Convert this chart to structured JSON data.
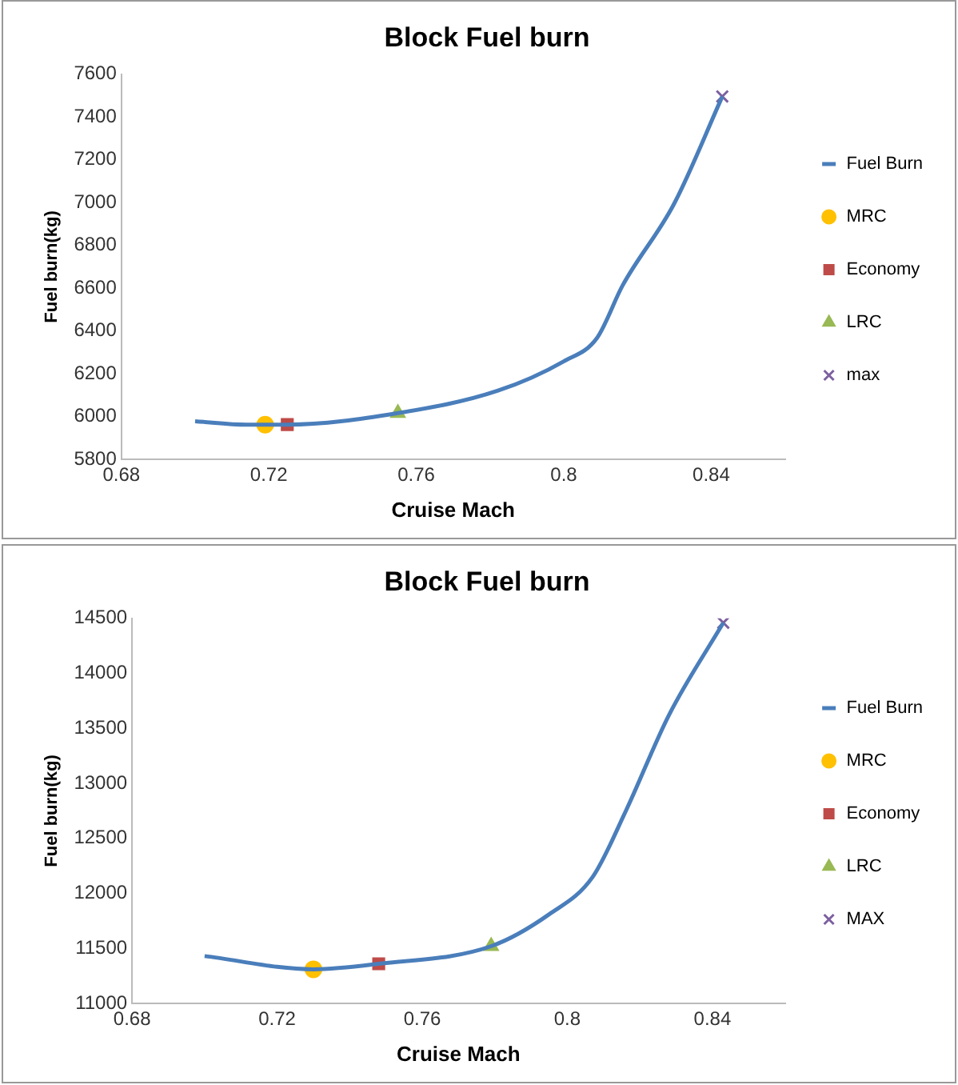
{
  "chart_data": [
    {
      "type": "line",
      "title": "Block Fuel burn",
      "xlabel": "Cruise Mach",
      "ylabel": "Fuel burn(kg)",
      "xlim": [
        0.68,
        0.86
      ],
      "xticks": [
        0.68,
        0.72,
        0.76,
        0.8,
        0.84
      ],
      "ylim": [
        5800,
        7600
      ],
      "yticks": [
        5800,
        6000,
        6200,
        6400,
        6600,
        6800,
        7000,
        7200,
        7400,
        7600
      ],
      "grid": false,
      "legend": "right",
      "series": [
        {
          "name": "Fuel Burn",
          "type": "line",
          "color": "#4a7ebb",
          "marker": "none",
          "x": [
            0.7,
            0.714,
            0.725,
            0.755,
            0.782,
            0.8,
            0.809,
            0.816,
            0.83,
            0.843
          ],
          "values": [
            5978,
            5962,
            5962,
            6016,
            6120,
            6258,
            6367,
            6614,
            6997,
            7496
          ]
        },
        {
          "name": "MRC",
          "type": "scatter",
          "color": "#ffc000",
          "marker": "circle",
          "x": [
            0.719
          ],
          "values": [
            5962
          ]
        },
        {
          "name": "Economy",
          "type": "scatter",
          "color": "#be4b48",
          "marker": "square",
          "x": [
            0.725
          ],
          "values": [
            5962
          ]
        },
        {
          "name": "LRC",
          "type": "scatter",
          "color": "#98b954",
          "marker": "triangle",
          "x": [
            0.755
          ],
          "values": [
            6016
          ]
        },
        {
          "name": "max",
          "type": "scatter",
          "color": "#7d60a0",
          "marker": "cross",
          "x": [
            0.843
          ],
          "values": [
            7496
          ]
        }
      ]
    },
    {
      "type": "line",
      "title": "Block Fuel burn",
      "xlabel": "Cruise Mach",
      "ylabel": "Fuel burn(kg)",
      "xlim": [
        0.68,
        0.86
      ],
      "xticks": [
        0.68,
        0.72,
        0.76,
        0.8,
        0.84
      ],
      "ylim": [
        11000,
        14500
      ],
      "yticks": [
        11000,
        11500,
        12000,
        12500,
        13000,
        13500,
        14000,
        14500
      ],
      "grid": false,
      "legend": "right",
      "series": [
        {
          "name": "Fuel Burn",
          "type": "line",
          "color": "#4a7ebb",
          "marker": "none",
          "x": [
            0.7,
            0.73,
            0.748,
            0.779,
            0.795,
            0.807,
            0.816,
            0.828,
            0.843
          ],
          "values": [
            11430,
            11310,
            11360,
            11520,
            11810,
            12150,
            12740,
            13620,
            14460
          ]
        },
        {
          "name": "MRC",
          "type": "scatter",
          "color": "#ffc000",
          "marker": "circle",
          "x": [
            0.73
          ],
          "values": [
            11310
          ]
        },
        {
          "name": "Economy",
          "type": "scatter",
          "color": "#be4b48",
          "marker": "square",
          "x": [
            0.748
          ],
          "values": [
            11360
          ]
        },
        {
          "name": "LRC",
          "type": "scatter",
          "color": "#98b954",
          "marker": "triangle",
          "x": [
            0.779
          ],
          "values": [
            11520
          ]
        },
        {
          "name": "MAX",
          "type": "scatter",
          "color": "#7d60a0",
          "marker": "cross",
          "x": [
            0.843
          ],
          "values": [
            14460
          ]
        }
      ]
    }
  ]
}
